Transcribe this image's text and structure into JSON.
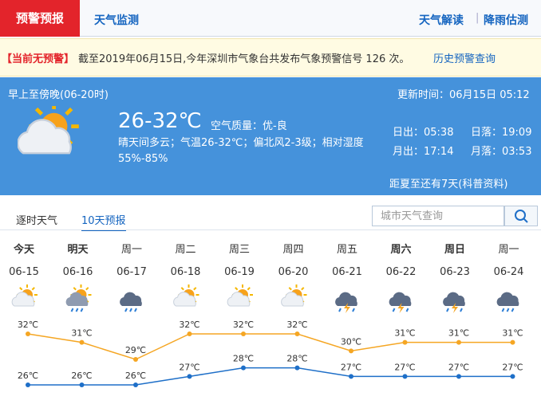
{
  "header": {
    "tabs": [
      "预警预报",
      "天气监测"
    ],
    "links": [
      "天气解读",
      "降雨估测"
    ]
  },
  "alert": {
    "status": "【当前无预警】",
    "text": "截至2019年06月15日,今年深圳市气象台共发布气象预警信号 126 次。",
    "link": "历史预警查询"
  },
  "today": {
    "period": "早上至傍晚(06-20时)",
    "update_time": "更新时间：06月15日 05:12",
    "temp": "26-32℃",
    "air_quality": "空气质量：优-良",
    "description": "晴天间多云；气温26-32℃；偏北风2-3级；相对湿度55%-85%",
    "sunrise": "日出：05:38",
    "sunset": "日落：19:09",
    "moonrise": "月出：17:14",
    "moonset": "月落：03:53",
    "solstice": "距夏至还有7天(科普资料)"
  },
  "tabs": [
    "逐时天气",
    "10天预报"
  ],
  "search_placeholder": "城市天气查询",
  "forecast": {
    "days": [
      "今天",
      "明天",
      "周一",
      "周二",
      "周三",
      "周四",
      "周五",
      "周六",
      "周日",
      "周一"
    ],
    "dates": [
      "06-15",
      "06-16",
      "06-17",
      "06-18",
      "06-19",
      "06-20",
      "06-21",
      "06-22",
      "06-23",
      "06-24"
    ],
    "high": {
      "color": "#f5a623",
      "values": [
        32,
        31,
        29,
        32,
        32,
        32,
        30,
        31,
        31,
        31
      ],
      "value_labels": [
        "32℃",
        "31℃",
        "29℃",
        "32℃",
        "32℃",
        "32℃",
        "30℃",
        "31℃",
        "31℃",
        "31℃"
      ]
    },
    "low": {
      "color": "#1e6fc8",
      "values": [
        26,
        26,
        26,
        27,
        28,
        28,
        27,
        27,
        27,
        27
      ],
      "value_labels": [
        "26℃",
        "26℃",
        "26℃",
        "27℃",
        "28℃",
        "28℃",
        "27℃",
        "27℃",
        "27℃",
        "27℃"
      ]
    }
  }
}
